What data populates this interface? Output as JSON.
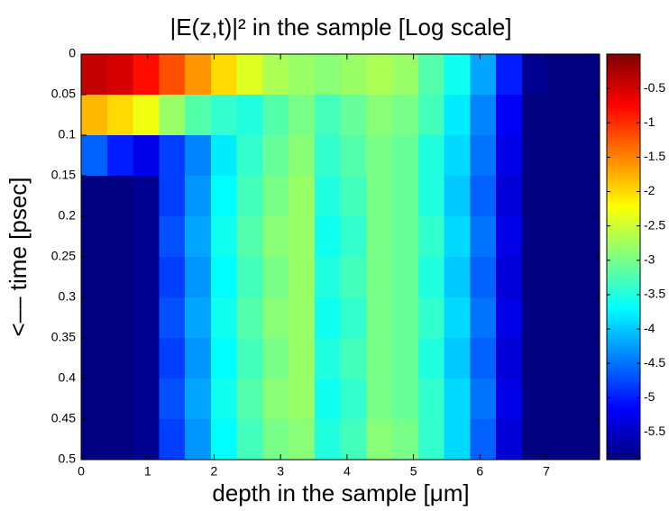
{
  "chart_data": {
    "type": "heatmap",
    "title": "|E(z,t)|² in the sample [Log scale]",
    "x_label": "depth in the sample [μm]",
    "y_label": "<–– time [psec]",
    "xlim": [
      0,
      7.8
    ],
    "ylim": [
      0,
      0.5
    ],
    "y_reversed": true,
    "xticks": [
      0,
      1,
      2,
      3,
      4,
      5,
      6,
      7
    ],
    "yticks": [
      0,
      0.05,
      0.1,
      0.15,
      0.2,
      0.25,
      0.3,
      0.35,
      0.4,
      0.45,
      0.5
    ],
    "xbins": [
      0,
      0.39,
      0.78,
      1.17,
      1.56,
      1.95,
      2.34,
      2.73,
      3.12,
      3.51,
      3.9,
      4.29,
      4.68,
      5.07,
      5.46,
      5.85,
      6.24,
      6.63,
      7.02,
      7.41,
      7.8
    ],
    "ybins": [
      0,
      0.05,
      0.1,
      0.15,
      0.2,
      0.25,
      0.3,
      0.35,
      0.4,
      0.45,
      0.5
    ],
    "z": [
      [
        -0.4,
        -0.5,
        -0.8,
        -1.2,
        -1.6,
        -2.0,
        -2.4,
        -2.7,
        -2.8,
        -2.9,
        -2.8,
        -2.7,
        -2.8,
        -3.2,
        -3.6,
        -4.2,
        -5.0,
        -5.8,
        -5.9,
        -5.9
      ],
      [
        -1.8,
        -2.0,
        -2.3,
        -2.8,
        -3.2,
        -3.4,
        -3.5,
        -3.2,
        -3.0,
        -3.3,
        -3.1,
        -2.9,
        -3.0,
        -3.3,
        -3.8,
        -4.4,
        -5.2,
        -5.9,
        -5.9,
        -5.9
      ],
      [
        -4.6,
        -5.0,
        -5.3,
        -4.8,
        -4.4,
        -3.8,
        -3.4,
        -3.1,
        -2.9,
        -3.4,
        -3.2,
        -3.0,
        -3.1,
        -3.5,
        -3.9,
        -4.5,
        -5.3,
        -5.9,
        -5.9,
        -5.9
      ],
      [
        -5.9,
        -5.9,
        -5.8,
        -4.8,
        -4.3,
        -3.7,
        -3.3,
        -3.0,
        -2.8,
        -3.5,
        -3.3,
        -3.0,
        -3.1,
        -3.5,
        -4.0,
        -4.6,
        -5.4,
        -5.9,
        -5.9,
        -5.9
      ],
      [
        -5.9,
        -5.9,
        -5.8,
        -4.7,
        -4.2,
        -3.6,
        -3.2,
        -2.9,
        -2.8,
        -3.6,
        -3.4,
        -3.0,
        -3.1,
        -3.4,
        -3.9,
        -4.5,
        -5.3,
        -5.9,
        -5.9,
        -5.9
      ],
      [
        -5.9,
        -5.9,
        -5.8,
        -4.8,
        -4.3,
        -3.7,
        -3.3,
        -3.0,
        -2.8,
        -3.5,
        -3.3,
        -3.0,
        -3.1,
        -3.5,
        -4.0,
        -4.6,
        -5.4,
        -5.9,
        -5.9,
        -5.9
      ],
      [
        -5.9,
        -5.9,
        -5.8,
        -4.7,
        -4.2,
        -3.6,
        -3.2,
        -2.9,
        -2.8,
        -3.6,
        -3.4,
        -3.0,
        -3.1,
        -3.4,
        -3.9,
        -4.5,
        -5.3,
        -5.9,
        -5.9,
        -5.9
      ],
      [
        -5.9,
        -5.9,
        -5.8,
        -4.8,
        -4.3,
        -3.7,
        -3.3,
        -3.0,
        -2.8,
        -3.5,
        -3.3,
        -3.0,
        -3.1,
        -3.5,
        -4.0,
        -4.6,
        -5.4,
        -5.9,
        -5.9,
        -5.9
      ],
      [
        -5.9,
        -5.9,
        -5.8,
        -4.7,
        -4.2,
        -3.6,
        -3.2,
        -2.9,
        -2.8,
        -3.6,
        -3.4,
        -3.0,
        -3.1,
        -3.4,
        -3.9,
        -4.5,
        -5.3,
        -5.9,
        -5.9,
        -5.9
      ],
      [
        -5.9,
        -5.9,
        -5.8,
        -4.8,
        -4.3,
        -3.7,
        -3.3,
        -3.0,
        -2.9,
        -3.5,
        -3.3,
        -2.9,
        -3.0,
        -3.4,
        -3.9,
        -4.6,
        -5.4,
        -5.9,
        -5.9,
        -5.9
      ]
    ],
    "colormap": "jet",
    "clim": [
      -5.9,
      0
    ],
    "cticks": [
      -0.5,
      -1,
      -1.5,
      -2,
      -2.5,
      -3,
      -3.5,
      -4,
      -4.5,
      -5,
      -5.5
    ]
  }
}
